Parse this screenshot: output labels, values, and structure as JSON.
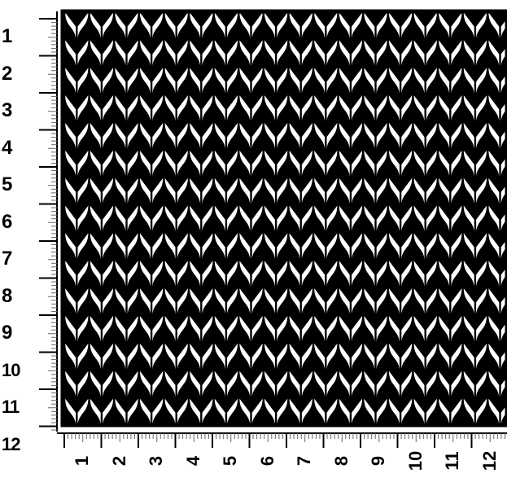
{
  "chart": {
    "kind": "knitting-gauge-grid",
    "stitch_columns": 19,
    "stitch_rows": 15,
    "colors": {
      "ink": "#000000",
      "paper": "#ffffff",
      "ruler_tick": "#666666"
    }
  },
  "ruler_left": {
    "labels": [
      "1",
      "2",
      "3",
      "4",
      "5",
      "6",
      "7",
      "8",
      "9",
      "10",
      "11",
      "12"
    ]
  },
  "ruler_bottom": {
    "labels": [
      "1",
      "2",
      "3",
      "4",
      "5",
      "6",
      "7",
      "8",
      "9",
      "10",
      "11",
      "12"
    ]
  }
}
